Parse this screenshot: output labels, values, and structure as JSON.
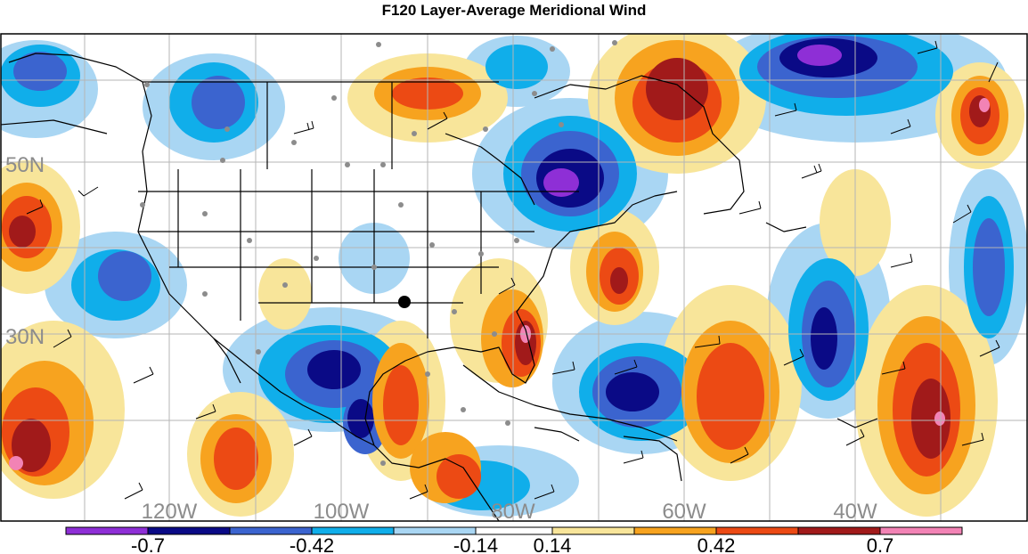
{
  "title": "F120 Layer-Average Meridional Wind",
  "lat_labels": [
    "50N",
    "30N"
  ],
  "lon_labels": [
    "120W",
    "100W",
    "80W",
    "60W",
    "40W"
  ],
  "colorbar": {
    "tick_labels": [
      "-0.7",
      "-0.42",
      "-0.14",
      "0.14",
      "0.42",
      "0.7"
    ],
    "colors": [
      "#8e2fd6",
      "#0a0a86",
      "#3b64cf",
      "#10aeea",
      "#a9d6f3",
      "#ffffff",
      "#f8e59a",
      "#f7a31f",
      "#ec4a14",
      "#a11a1a",
      "#f283b5"
    ]
  },
  "label_color": "#8c8c8c",
  "marker_color": "#000000"
}
